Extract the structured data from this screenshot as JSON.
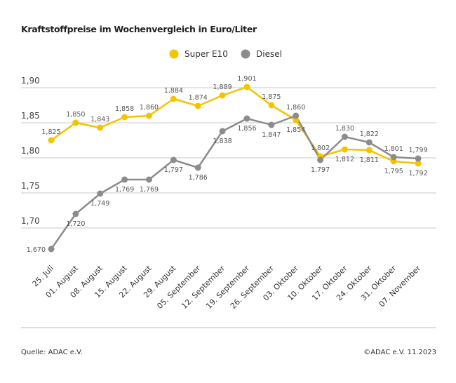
{
  "chart_data": {
    "type": "line",
    "title": "Kraftstoffpreise im Wochenvergleich in Euro/Liter",
    "categories": [
      "25. Juli",
      "01. August",
      "08. August",
      "15. August",
      "22. August",
      "29. August",
      "05. September",
      "12. September",
      "19. September",
      "26. September",
      "03. Oktober",
      "10. Oktober",
      "17. Oktober",
      "24. Oktober",
      "31. Oktober",
      "07. November"
    ],
    "series": [
      {
        "name": "Super E10",
        "color": "#f5c400",
        "values": [
          1.825,
          1.85,
          1.843,
          1.858,
          1.86,
          1.884,
          1.874,
          1.889,
          1.901,
          1.875,
          1.854,
          1.802,
          1.812,
          1.811,
          1.795,
          1.792
        ]
      },
      {
        "name": "Diesel",
        "color": "#8c8c8c",
        "values": [
          1.67,
          1.72,
          1.749,
          1.769,
          1.769,
          1.797,
          1.786,
          1.838,
          1.856,
          1.847,
          1.86,
          1.797,
          1.83,
          1.822,
          1.801,
          1.799
        ]
      }
    ],
    "yticks": [
      "1,70",
      "1,75",
      "1,80",
      "1,85",
      "1,90"
    ],
    "ylim": [
      1.65,
      1.9
    ],
    "grid": true,
    "legend": "top-right",
    "decimal_separator": ","
  },
  "footer": {
    "source": "Quelle: ADAC e.V.",
    "copyright": "©ADAC e.V. 11.2023"
  }
}
